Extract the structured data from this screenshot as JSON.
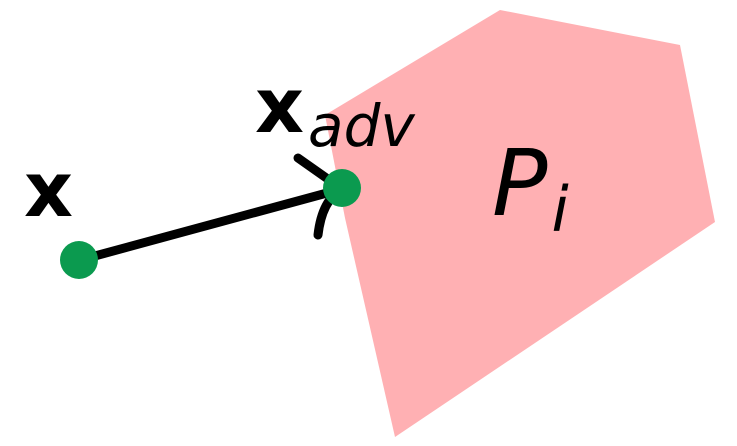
{
  "labels": {
    "point": "x",
    "adversarial_base": "x",
    "adversarial_subscript": "adv",
    "region_base": "P",
    "region_subscript": "i"
  },
  "colors": {
    "region_fill": "#ffb0b3",
    "point_fill": "#0b9a4f",
    "arrow": "#000000",
    "text": "#000000"
  }
}
